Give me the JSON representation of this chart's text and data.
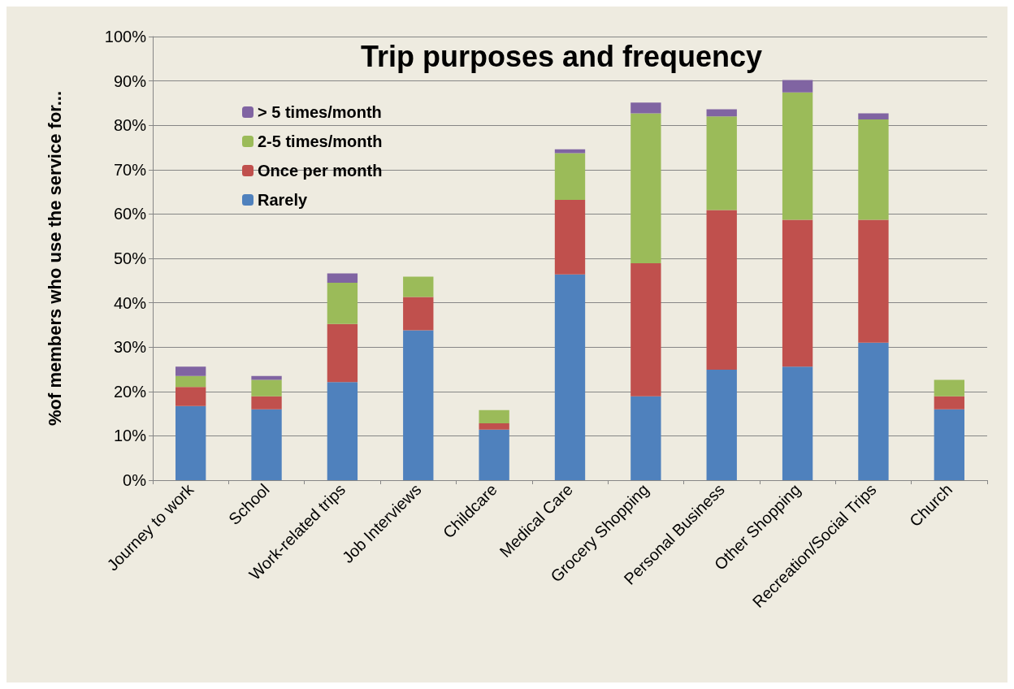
{
  "chart_data": {
    "type": "bar",
    "stacked": true,
    "title": "Trip purposes and frequency",
    "ylabel": "%of members who use the service for...",
    "categories": [
      "Journey to work",
      "School",
      "Work-related trips",
      "Job Interviews",
      "Childcare",
      "Medical Care",
      "Grocery Shopping",
      "Personal Business",
      "Other Shopping",
      "Recreation/Social Trips",
      "Church"
    ],
    "series": [
      {
        "name": "Rarely",
        "color": "#4f81bd",
        "values": [
          16.7,
          16.0,
          22.1,
          33.8,
          11.4,
          46.4,
          18.9,
          24.9,
          25.6,
          31.0,
          16.0
        ]
      },
      {
        "name": "Once per month",
        "color": "#c0504d",
        "values": [
          4.3,
          2.9,
          13.1,
          7.5,
          1.4,
          16.8,
          30.0,
          36.0,
          33.1,
          27.7,
          2.9
        ]
      },
      {
        "name": "2-5 times/month",
        "color": "#9bbb59",
        "values": [
          2.5,
          3.7,
          9.3,
          4.6,
          3.0,
          10.5,
          33.8,
          21.1,
          28.7,
          22.6,
          3.7
        ]
      },
      {
        "name": "> 5 times/month",
        "color": "#8064a2",
        "values": [
          2.1,
          0.9,
          2.1,
          0,
          0,
          0.9,
          2.4,
          1.6,
          2.8,
          1.4,
          0
        ]
      }
    ],
    "ylim": [
      0,
      100
    ],
    "yticks": [
      {
        "value": 0,
        "label": "0%"
      },
      {
        "value": 10,
        "label": "10%"
      },
      {
        "value": 20,
        "label": "20%"
      },
      {
        "value": 30,
        "label": "30%"
      },
      {
        "value": 40,
        "label": "40%"
      },
      {
        "value": 50,
        "label": "50%"
      },
      {
        "value": 60,
        "label": "60%"
      },
      {
        "value": 70,
        "label": "70%"
      },
      {
        "value": 80,
        "label": "80%"
      },
      {
        "value": 90,
        "label": "90%"
      },
      {
        "value": 100,
        "label": "100%"
      }
    ],
    "grid": "y",
    "legend": "top left"
  }
}
